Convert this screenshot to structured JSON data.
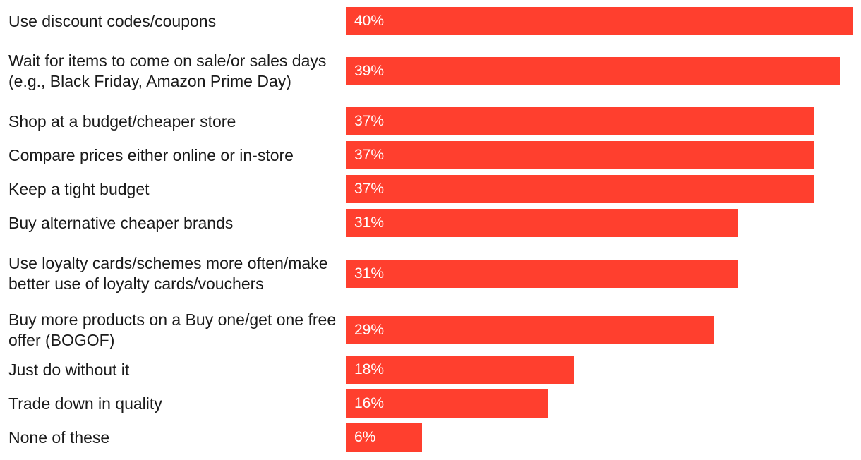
{
  "chart_data": {
    "type": "bar",
    "orientation": "horizontal",
    "categories": [
      "Use discount codes/coupons",
      "Wait for items to come on sale/or sales days (e.g., Black Friday, Amazon Prime Day)",
      "Shop at a budget/cheaper store",
      "Compare prices either online or in-store",
      "Keep a tight budget",
      "Buy alternative cheaper brands",
      "Use loyalty cards/schemes more often/make better use of loyalty cards/vouchers",
      "Buy more products on a Buy one/get one free offer (BOGOF)",
      "Just do without it",
      "Trade down in quality",
      "None of these"
    ],
    "values": [
      40,
      39,
      37,
      37,
      37,
      31,
      31,
      29,
      18,
      16,
      6
    ],
    "value_labels": [
      "40%",
      "39%",
      "37%",
      "37%",
      "37%",
      "31%",
      "31%",
      "29%",
      "18%",
      "16%",
      "6%"
    ],
    "unit": "%",
    "xlim": [
      0,
      40
    ],
    "grid": false,
    "bar_color": "#ff3f2e"
  }
}
